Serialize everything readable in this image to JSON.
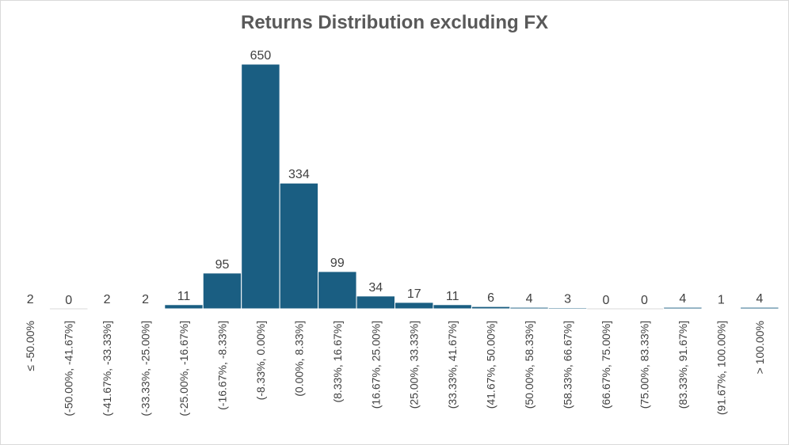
{
  "chart_data": {
    "type": "bar",
    "title": "Returns Distribution  excluding FX",
    "xlabel": "",
    "ylabel": "",
    "grid": false,
    "legend": "none",
    "bar_color": "#1a5e82",
    "categories": [
      "≤ -50.00%",
      "(-50.00%, -41.67%]",
      "(-41.67%, -33.33%]",
      "(-33.33%, -25.00%]",
      "(-25.00%, -16.67%]",
      "(-16.67%, -8.33%]",
      "(-8.33%, 0.00%]",
      "(0.00%, 8.33%]",
      "(8.33%, 16.67%]",
      "(16.67%, 25.00%]",
      "(25.00%, 33.33%]",
      "(33.33%, 41.67%]",
      "(41.67%, 50.00%]",
      "(50.00%, 58.33%]",
      "(58.33%, 66.67%]",
      "(66.67%, 75.00%]",
      "(75.00%, 83.33%]",
      "(83.33%, 91.67%]",
      "(91.67%, 100.00%]",
      "> 100.00%"
    ],
    "values": [
      2,
      0,
      2,
      2,
      11,
      95,
      650,
      334,
      99,
      34,
      17,
      11,
      6,
      4,
      3,
      0,
      0,
      4,
      1,
      4
    ],
    "ylim": [
      0,
      650
    ]
  }
}
